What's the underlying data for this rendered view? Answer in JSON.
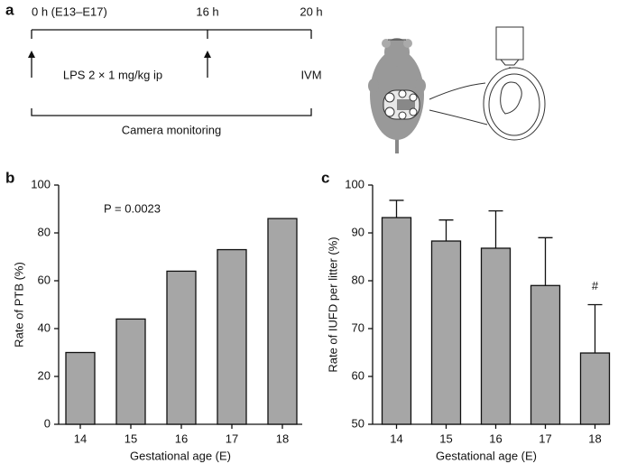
{
  "panels": {
    "a": "a",
    "b": "b",
    "c": "c"
  },
  "timeline": {
    "labels": [
      "0 h (E13–E17)",
      "16 h",
      "20 h"
    ],
    "treatment": "LPS 2 × 1 mg/kg ip",
    "imaging": "IVM",
    "monitoring": "Camera monitoring"
  },
  "chart_data": [
    {
      "type": "bar",
      "categories": [
        "14",
        "15",
        "16",
        "17",
        "18"
      ],
      "values": [
        30,
        44,
        64,
        73,
        86
      ],
      "color": "#a6a6a6",
      "xlabel": "Gestational age (E)",
      "ylabel": "Rate of PTB (%)",
      "ylim": [
        0,
        100
      ],
      "yticks": [
        0,
        20,
        40,
        60,
        80,
        100
      ],
      "annotation": "P = 0.0023"
    },
    {
      "type": "bar",
      "categories": [
        "14",
        "15",
        "16",
        "17",
        "18"
      ],
      "values": [
        93.2,
        88.3,
        86.8,
        79,
        64.9
      ],
      "errors": [
        3.6,
        4.4,
        7.8,
        10,
        10.1
      ],
      "color": "#a6a6a6",
      "xlabel": "Gestational age (E)",
      "ylabel": "Rate of IUFD per litter (%)",
      "ylim": [
        50,
        100
      ],
      "yticks": [
        50,
        60,
        70,
        80,
        90,
        100
      ],
      "annotation": "#"
    }
  ]
}
